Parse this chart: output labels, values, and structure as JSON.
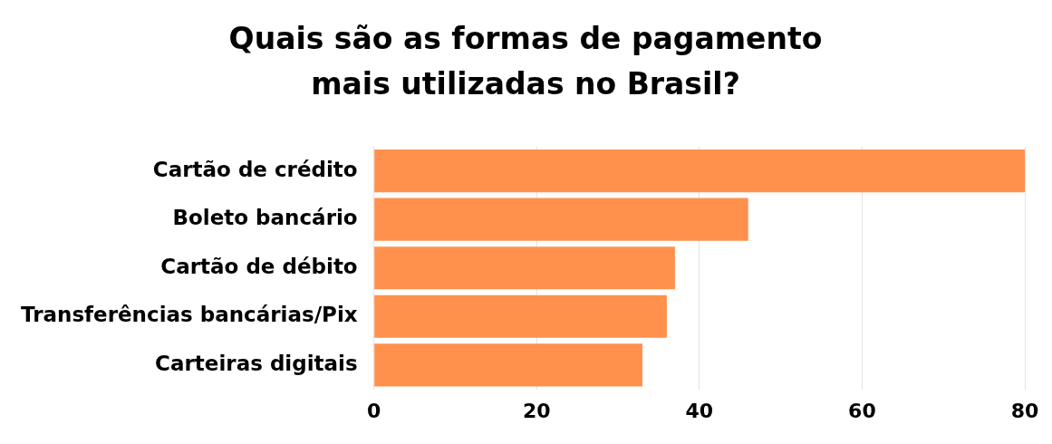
{
  "chart_data": {
    "type": "bar",
    "orientation": "horizontal",
    "title": "Quais são as formas de pagamento mais utilizadas no Brasil?",
    "categories": [
      "Cartão de crédito",
      "Boleto bancário",
      "Cartão de débito",
      "Transferências bancárias/Pix",
      "Carteiras digitais"
    ],
    "values": [
      80,
      46,
      37,
      36,
      33
    ],
    "color": "#ff914d",
    "xlim": [
      0,
      80
    ],
    "xticks": [
      0,
      20,
      40,
      60,
      80
    ],
    "grid": "x"
  }
}
